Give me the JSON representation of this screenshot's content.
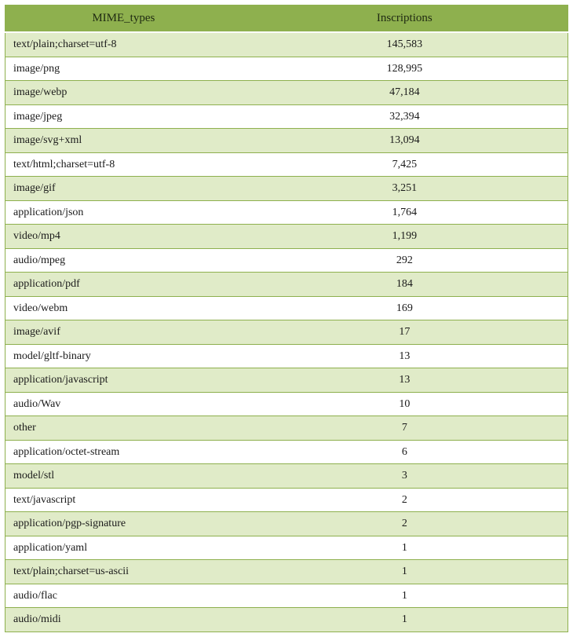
{
  "table": {
    "type": "table",
    "colors": {
      "header_bg": "#8eb04e",
      "header_text": "#1f2a12",
      "row_odd_bg": "#e0ebc8",
      "row_even_bg": "#ffffff",
      "border": "#8eb04e",
      "header_divider": "#ffffff",
      "cell_text": "#1a1a1a"
    },
    "typography": {
      "header_fontsize": 15,
      "cell_fontsize": 14,
      "font_family": "Times New Roman"
    },
    "columns": [
      {
        "key": "mime",
        "label": "MIME_types",
        "align": "left",
        "width_pct": 42
      },
      {
        "key": "inscriptions",
        "label": "Inscriptions",
        "align": "center",
        "width_pct": 58
      }
    ],
    "rows": [
      {
        "mime": "text/plain;charset=utf-8",
        "inscriptions": "145,583"
      },
      {
        "mime": "image/png",
        "inscriptions": "128,995"
      },
      {
        "mime": "image/webp",
        "inscriptions": "47,184"
      },
      {
        "mime": "image/jpeg",
        "inscriptions": "32,394"
      },
      {
        "mime": "image/svg+xml",
        "inscriptions": "13,094"
      },
      {
        "mime": "text/html;charset=utf-8",
        "inscriptions": "7,425"
      },
      {
        "mime": "image/gif",
        "inscriptions": "3,251"
      },
      {
        "mime": "application/json",
        "inscriptions": "1,764"
      },
      {
        "mime": "video/mp4",
        "inscriptions": "1,199"
      },
      {
        "mime": "audio/mpeg",
        "inscriptions": "292"
      },
      {
        "mime": "application/pdf",
        "inscriptions": "184"
      },
      {
        "mime": "video/webm",
        "inscriptions": "169"
      },
      {
        "mime": "image/avif",
        "inscriptions": "17"
      },
      {
        "mime": "model/gltf-binary",
        "inscriptions": "13"
      },
      {
        "mime": "application/javascript",
        "inscriptions": "13"
      },
      {
        "mime": "audio/Wav",
        "inscriptions": "10"
      },
      {
        "mime": "other",
        "inscriptions": "7"
      },
      {
        "mime": "application/octet-stream",
        "inscriptions": "6"
      },
      {
        "mime": "model/stl",
        "inscriptions": "3"
      },
      {
        "mime": "text/javascript",
        "inscriptions": "2"
      },
      {
        "mime": "application/pgp-signature",
        "inscriptions": "2"
      },
      {
        "mime": "application/yaml",
        "inscriptions": "1"
      },
      {
        "mime": "text/plain;charset=us-ascii",
        "inscriptions": "1"
      },
      {
        "mime": "audio/flac",
        "inscriptions": "1"
      },
      {
        "mime": "audio/midi",
        "inscriptions": "1"
      }
    ]
  }
}
